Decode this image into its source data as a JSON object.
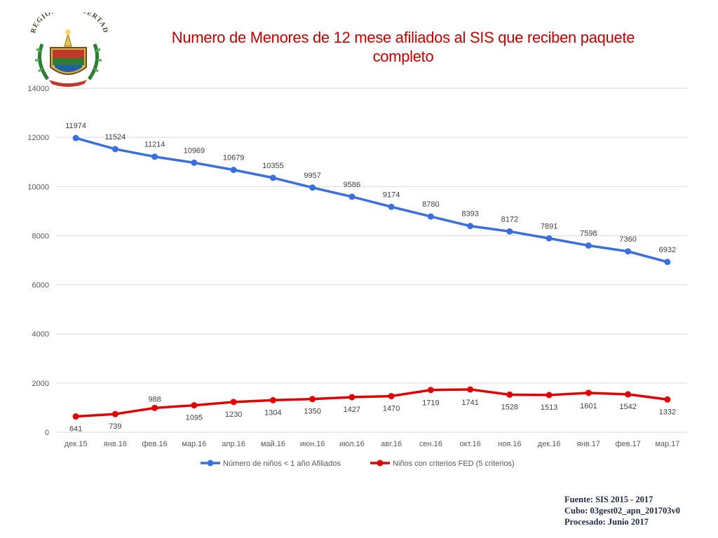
{
  "header": {
    "title": "Numero de Menores de 12 mese afiliados al SIS que reciben paquete completo",
    "logo_text": "REGIÓN LA LIBERTAD"
  },
  "chart_data": {
    "type": "line",
    "title": "Numero de Menores de 12 mese afiliados al SIS que reciben paquete completo",
    "xlabel": "",
    "ylabel": "",
    "ylim": [
      0,
      14000
    ],
    "yticks": [
      0,
      2000,
      4000,
      6000,
      8000,
      10000,
      12000,
      14000
    ],
    "grid": true,
    "legend_position": "bottom",
    "categories": [
      "дек.15",
      "янв.16",
      "фев.16",
      "мар.16",
      "апр.16",
      "май.16",
      "июн.16",
      "июл.16",
      "авг.16",
      "сен.16",
      "окт.16",
      "ноя.16",
      "дек.16",
      "янв.17",
      "фев.17",
      "мар.17"
    ],
    "series": [
      {
        "name": "Número de niños < 1 año Afiliados",
        "color": "#3a6fe0",
        "values": [
          11974,
          11524,
          11214,
          10969,
          10679,
          10355,
          9957,
          9586,
          9174,
          8780,
          8393,
          8172,
          7891,
          7598,
          7360,
          6932
        ]
      },
      {
        "name": "Niños con criterios FED (5 criterios)",
        "color": "#e00000",
        "values": [
          641,
          739,
          988,
          1095,
          1230,
          1304,
          1350,
          1427,
          1470,
          1719,
          1741,
          1528,
          1513,
          1601,
          1542,
          1332
        ]
      }
    ]
  },
  "source": {
    "line1": "Fuente: SIS 2015 - 2017",
    "line2": "Cubo: 03gest02_apn_201703v0",
    "line3": "Procesado: Junio 2017"
  },
  "colors": {
    "title": "#c00000",
    "grid": "#d9d9d9",
    "axis_text": "#595959",
    "source_text": "#1f2a44"
  }
}
